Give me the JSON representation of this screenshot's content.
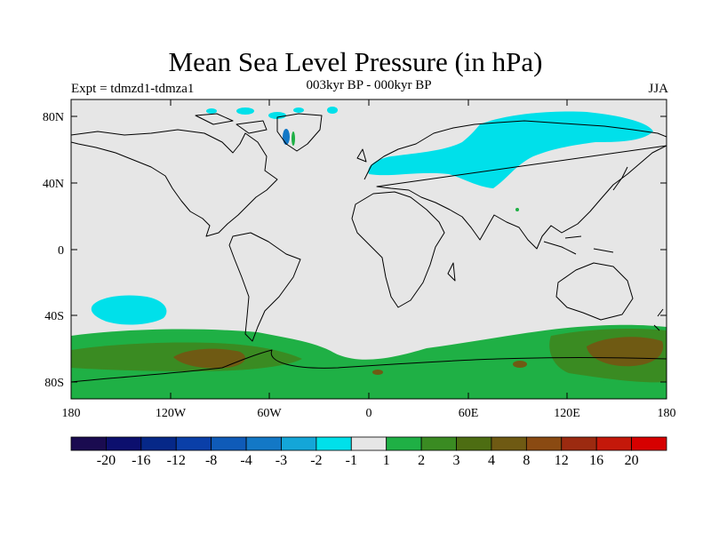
{
  "title": "Mean Sea Level Pressure (in hPa)",
  "subtitle": "003kyr BP - 000kyr BP",
  "left_label": "Expt = tdmzd1-tdmza1",
  "right_label": "JJA",
  "lat_ticks": [
    "80N",
    "40N",
    "0",
    "40S",
    "80S"
  ],
  "lon_ticks": [
    "180",
    "120W",
    "60W",
    "0",
    "60E",
    "120E",
    "180"
  ],
  "colorbar": {
    "labels": [
      "-20",
      "-16",
      "-12",
      "-8",
      "-4",
      "-3",
      "-2",
      "-1",
      "1",
      "2",
      "3",
      "4",
      "8",
      "12",
      "16",
      "20"
    ],
    "colors": [
      "#1a0b50",
      "#0c0f6e",
      "#062888",
      "#0a3fa8",
      "#0f5bb8",
      "#1378c6",
      "#14a6d8",
      "#00e0ea",
      "#e6e6e6",
      "#1fb045",
      "#3a8b22",
      "#4d6d12",
      "#6f5a13",
      "#8a4a12",
      "#9c2a10",
      "#c4180a",
      "#d60000"
    ]
  },
  "map_colors": {
    "background": "#e6e6e6",
    "land_outline": "#000000",
    "neg_1": "#00e0ea",
    "pos_1": "#1fb045",
    "pos_2": "#3a8b22",
    "pos_3": "#6f5a13"
  }
}
